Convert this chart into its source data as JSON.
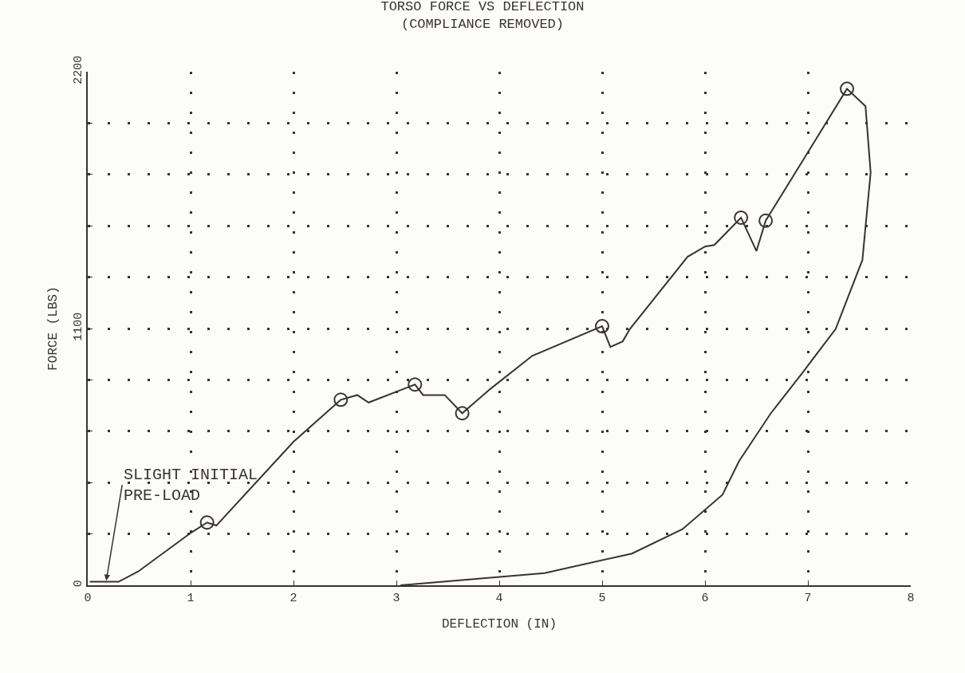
{
  "chart_data": {
    "type": "line",
    "title": "TORSO FORCE VS DEFLECTION",
    "subtitle": "(COMPLIANCE REMOVED)",
    "xlabel": "DEFLECTION (IN)",
    "ylabel": "FORCE (LBS)",
    "xlim": [
      0,
      8
    ],
    "xticks": [
      0,
      1,
      2,
      3,
      4,
      5,
      6,
      7,
      8
    ],
    "ylim": [
      0,
      2200
    ],
    "yticks": [
      0,
      {
        "value": 220,
        "label": null
      },
      {
        "value": 440,
        "label": null
      },
      {
        "value": 660,
        "label": null
      },
      {
        "value": 880,
        "label": null
      },
      1100,
      {
        "value": 1320,
        "label": null
      },
      {
        "value": 1540,
        "label": null
      },
      {
        "value": 1760,
        "label": null
      },
      {
        "value": 1980,
        "label": null
      },
      2200
    ],
    "grid": true,
    "legend": false,
    "series": [
      {
        "color": "#3a3232",
        "marker": "none",
        "line_style": "solid",
        "x": [
          0.02,
          0.3,
          0.49,
          1.01,
          1.16,
          1.25,
          2.0,
          2.46,
          2.62,
          2.73,
          3.18,
          3.26,
          3.47,
          3.64,
          3.91,
          4.32,
          5.0,
          5.08,
          5.2,
          5.27,
          5.83,
          6.0,
          6.09,
          6.35,
          6.5,
          6.59,
          7.38,
          7.56,
          7.61,
          7.53,
          7.27,
          6.96,
          6.64,
          6.33,
          6.17,
          5.78,
          5.29,
          4.44,
          3.98,
          3.04
        ],
        "values": [
          15,
          15,
          59,
          227,
          269,
          256,
          615,
          795,
          815,
          783,
          860,
          815,
          815,
          737,
          840,
          983,
          1110,
          1021,
          1045,
          1098,
          1407,
          1451,
          1458,
          1575,
          1432,
          1562,
          2127,
          2052,
          1768,
          1394,
          1098,
          918,
          737,
          531,
          388,
          240,
          136,
          52,
          35,
          0
        ]
      },
      {
        "type": "scatter",
        "color": "#3a3232",
        "marker": "circle",
        "x": [
          1.16,
          2.46,
          3.18,
          3.64,
          5.0,
          6.35,
          6.59,
          7.38
        ],
        "values": [
          269,
          795,
          860,
          737,
          1110,
          1575,
          1562,
          2127
        ]
      }
    ],
    "annotations": [
      {
        "text": "SLIGHT INITIAL\nPRE-LOAD",
        "x": 0.18,
        "y": 20
      }
    ]
  }
}
